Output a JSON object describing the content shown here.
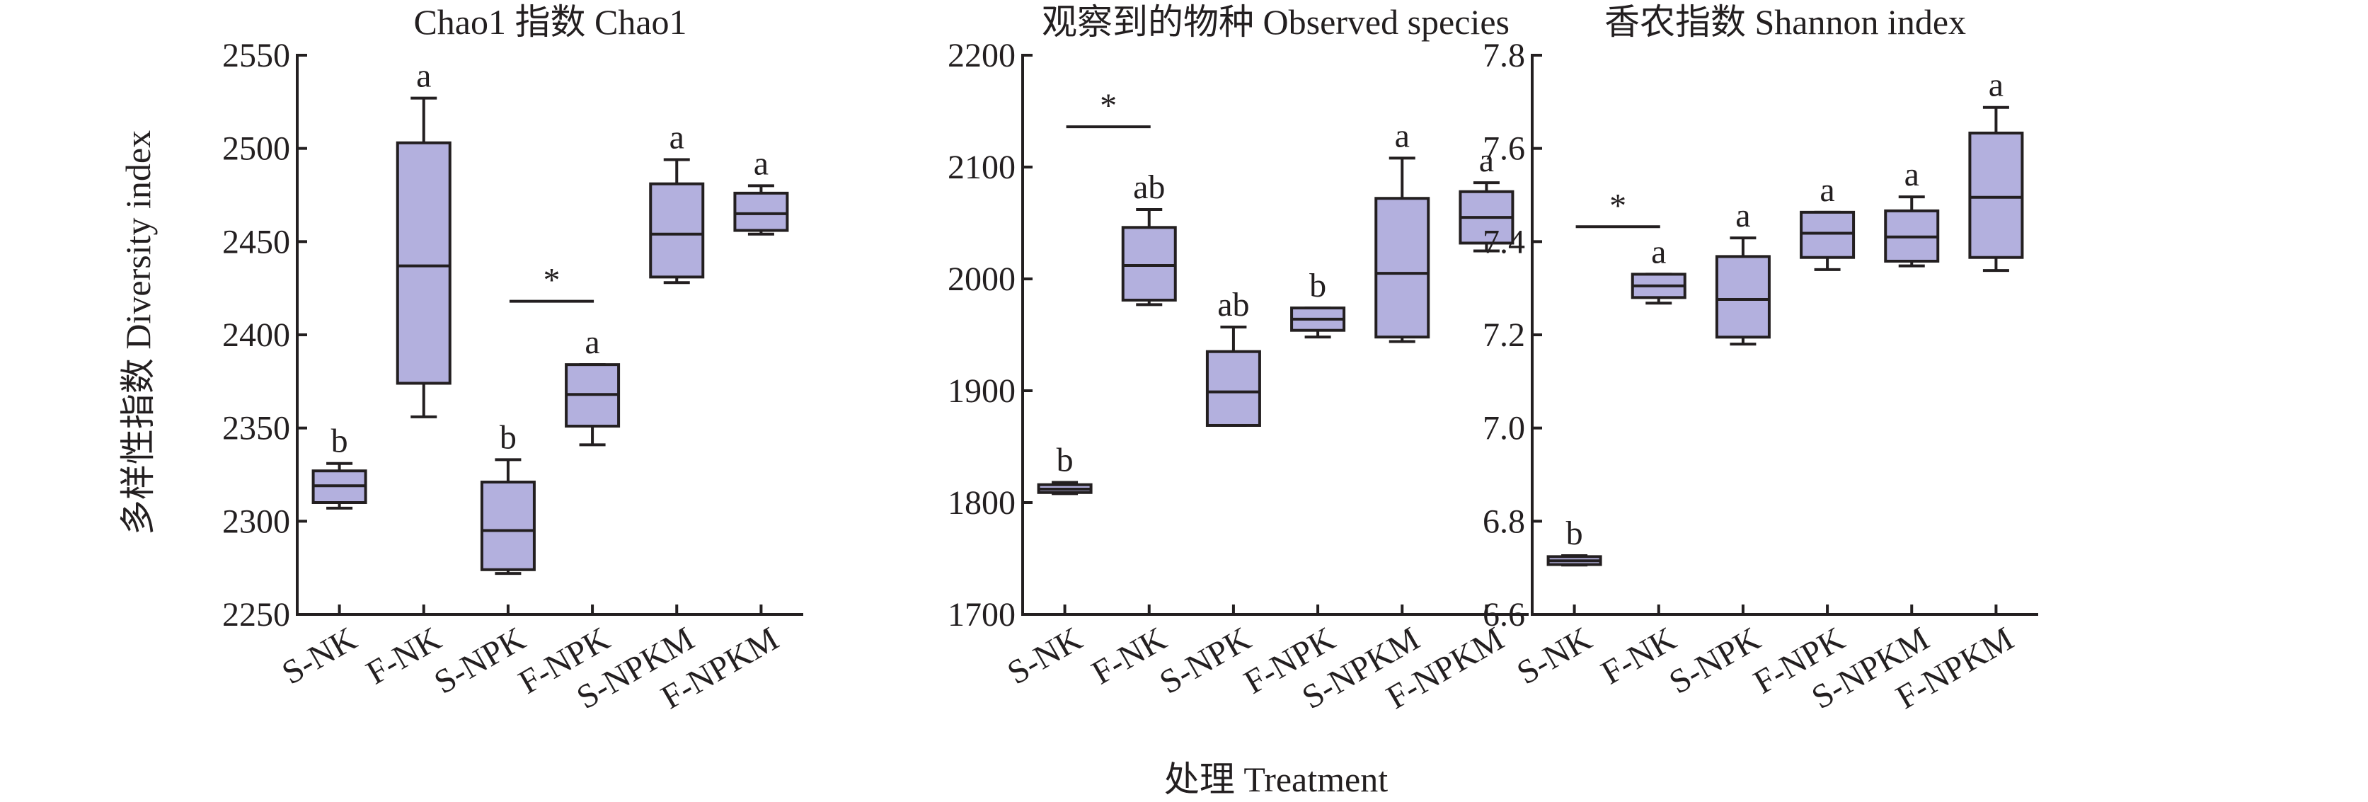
{
  "figure": {
    "ylabel": "多样性指数 Diversity index",
    "xlabel": "处理 Treatment"
  },
  "chart_data": [
    {
      "type": "box",
      "title": "Chao1 指数 Chao1",
      "categories": [
        "S-NK",
        "F-NK",
        "S-NPK",
        "F-NPK",
        "S-NPKM",
        "F-NPKM"
      ],
      "ylim": [
        2250,
        2550
      ],
      "yticks": [
        2250,
        2300,
        2350,
        2400,
        2450,
        2500,
        2550
      ],
      "boxes": [
        {
          "min": 2307,
          "q1": 2310,
          "median": 2319,
          "q3": 2327,
          "max": 2331,
          "label": "b"
        },
        {
          "min": 2356,
          "q1": 2374,
          "median": 2437,
          "q3": 2503,
          "max": 2527,
          "label": "a"
        },
        {
          "min": 2272,
          "q1": 2274,
          "median": 2295,
          "q3": 2321,
          "max": 2333,
          "label": "b"
        },
        {
          "min": 2341,
          "q1": 2351,
          "median": 2368,
          "q3": 2384,
          "max": 2384,
          "label": "a"
        },
        {
          "min": 2428,
          "q1": 2431,
          "median": 2454,
          "q3": 2481,
          "max": 2494,
          "label": "a"
        },
        {
          "min": 2454,
          "q1": 2456,
          "median": 2465,
          "q3": 2476,
          "max": 2480,
          "label": "a"
        }
      ],
      "significance": [
        {
          "from": 2,
          "to": 3,
          "y": 2418,
          "symbol": "*"
        }
      ]
    },
    {
      "type": "box",
      "title": "观察到的物种 Observed species",
      "categories": [
        "S-NK",
        "F-NK",
        "S-NPK",
        "F-NPK",
        "S-NPKM",
        "F-NPKM"
      ],
      "ylim": [
        1700,
        2200
      ],
      "yticks": [
        1700,
        1800,
        1900,
        2000,
        2100,
        2200
      ],
      "boxes": [
        {
          "min": 1808,
          "q1": 1809,
          "median": 1812,
          "q3": 1816,
          "max": 1818,
          "label": "b"
        },
        {
          "min": 1977,
          "q1": 1981,
          "median": 2012,
          "q3": 2046,
          "max": 2062,
          "label": "ab"
        },
        {
          "min": 1869,
          "q1": 1869,
          "median": 1899,
          "q3": 1935,
          "max": 1957,
          "label": "ab"
        },
        {
          "min": 1948,
          "q1": 1954,
          "median": 1964,
          "q3": 1974,
          "max": 1974,
          "label": "b"
        },
        {
          "min": 1944,
          "q1": 1948,
          "median": 2005,
          "q3": 2072,
          "max": 2108,
          "label": "a"
        },
        {
          "min": 2025,
          "q1": 2032,
          "median": 2055,
          "q3": 2078,
          "max": 2086,
          "label": "a"
        }
      ],
      "significance": [
        {
          "from": 0,
          "to": 1,
          "y": 2136,
          "symbol": "*"
        }
      ]
    },
    {
      "type": "box",
      "title": "香农指数 Shannon index",
      "categories": [
        "S-NK",
        "F-NK",
        "S-NPK",
        "F-NPK",
        "S-NPKM",
        "F-NPKM"
      ],
      "ylim": [
        6.6,
        7.8
      ],
      "yticks": [
        "6.6",
        "6.8",
        "7.0",
        "7.2",
        "7.4",
        "7.6",
        "7.8"
      ],
      "boxes": [
        {
          "min": 6.706,
          "q1": 6.707,
          "median": 6.715,
          "q3": 6.724,
          "max": 6.726,
          "label": "b"
        },
        {
          "min": 7.268,
          "q1": 7.28,
          "median": 7.305,
          "q3": 7.33,
          "max": 7.33,
          "label": "a"
        },
        {
          "min": 7.18,
          "q1": 7.195,
          "median": 7.276,
          "q3": 7.368,
          "max": 7.408,
          "label": "a"
        },
        {
          "min": 7.34,
          "q1": 7.366,
          "median": 7.418,
          "q3": 7.463,
          "max": 7.463,
          "label": "a"
        },
        {
          "min": 7.348,
          "q1": 7.358,
          "median": 7.41,
          "q3": 7.466,
          "max": 7.496,
          "label": "a"
        },
        {
          "min": 7.338,
          "q1": 7.366,
          "median": 7.495,
          "q3": 7.633,
          "max": 7.688,
          "label": "a"
        }
      ],
      "significance": [
        {
          "from": 0,
          "to": 1,
          "y": 7.432,
          "symbol": "*"
        }
      ]
    }
  ]
}
